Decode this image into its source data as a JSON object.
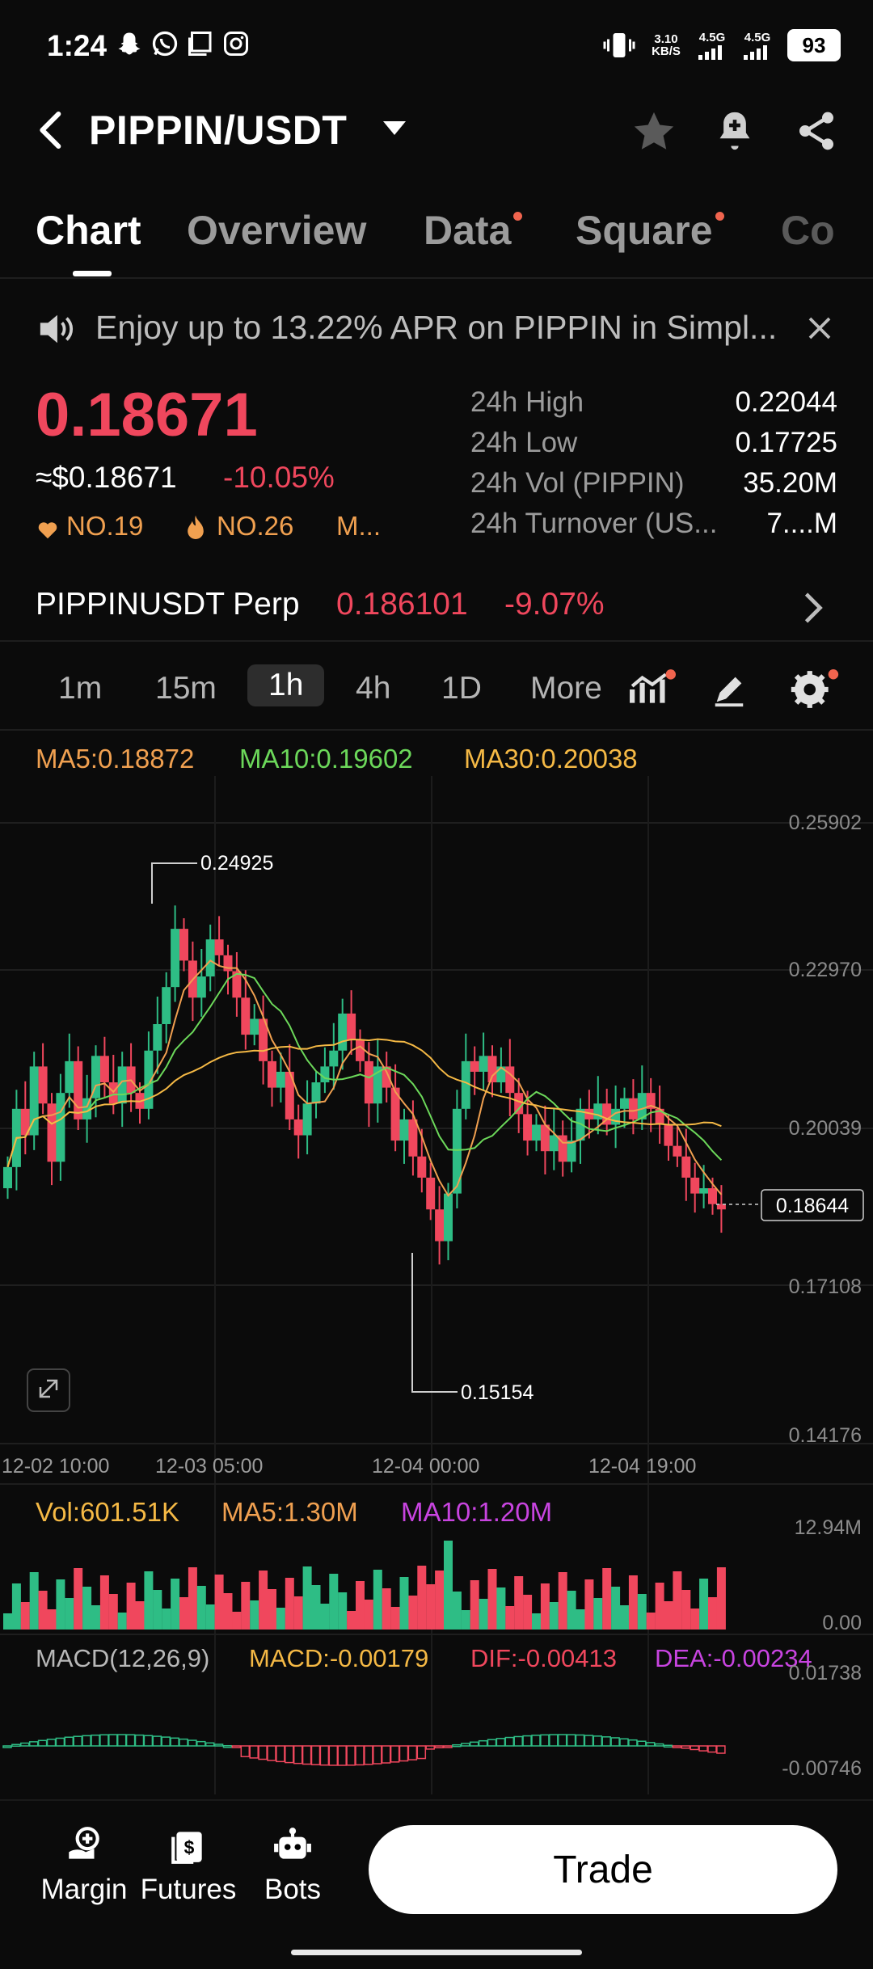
{
  "status_bar": {
    "time": "1:24",
    "net_speed": "3.10 KB/S",
    "sig1": "4.5G",
    "sig2": "4.5G",
    "battery": "93"
  },
  "header": {
    "pair": "PIPPIN/USDT"
  },
  "tabs": [
    {
      "label": "Chart",
      "active": true,
      "dot": false
    },
    {
      "label": "Overview",
      "active": false,
      "dot": false
    },
    {
      "label": "Data",
      "active": false,
      "dot": true
    },
    {
      "label": "Square",
      "active": false,
      "dot": true
    },
    {
      "label": "Co",
      "active": false,
      "dot": false
    }
  ],
  "banner": {
    "text": "Enjoy up to 13.22% APR on PIPPIN in Simpl..."
  },
  "price": {
    "last": "0.18671",
    "usd": "≈$0.18671",
    "change": "-10.05%",
    "rank1": "NO.19",
    "rank2": "NO.26",
    "rank_more": "M..."
  },
  "stats": [
    {
      "label": "24h High",
      "value": "0.22044"
    },
    {
      "label": "24h Low",
      "value": "0.17725"
    },
    {
      "label": "24h Vol (PIPPIN)",
      "value": "35.20M"
    },
    {
      "label": "24h Turnover (US...",
      "value": "7....M"
    }
  ],
  "perp": {
    "label": "PIPPINUSDT Perp",
    "price": "0.186101",
    "change": "-9.07%"
  },
  "intervals": [
    "1m",
    "15m",
    "1h",
    "4h",
    "1D",
    "More"
  ],
  "active_interval": "1h",
  "ma_legend": {
    "ma5": "MA5:0.18872",
    "ma10": "MA10:0.19602",
    "ma30": "MA30:0.20038"
  },
  "colors": {
    "up": "#2ebd85",
    "down": "#f0475d",
    "ma5": "#f0a050",
    "ma10": "#6cd85a",
    "ma30": "#f5b945",
    "macd_dea": "#c844e0",
    "accent_dot": "#f0644e"
  },
  "axis": {
    "price_ticks": [
      "0.25902",
      "0.22970",
      "0.20039",
      "0.17108",
      "0.14176"
    ],
    "time_ticks": [
      "12-02 10:00",
      "12-03 05:00",
      "12-04 00:00",
      "12-04 19:00"
    ],
    "high_marker": "0.24925",
    "low_marker": "0.15154",
    "current_price": "0.18644"
  },
  "volume": {
    "vol": "Vol:601.51K",
    "ma5": "MA5:1.30M",
    "ma10": "MA10:1.20M",
    "max": "12.94M",
    "min": "0.00"
  },
  "macd": {
    "label": "MACD(12,26,9)",
    "macd": "MACD:-0.00179",
    "dif": "DIF:-0.00413",
    "dea": "DEA:-0.00234",
    "top": "0.01738",
    "bottom": "-0.00746"
  },
  "bottom_nav": {
    "margin": "Margin",
    "futures": "Futures",
    "bots": "Bots",
    "trade": "Trade"
  }
}
